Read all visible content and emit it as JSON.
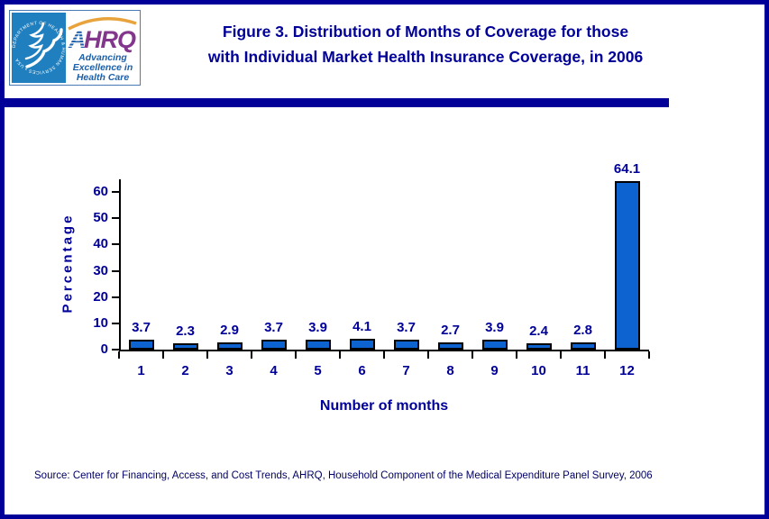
{
  "header": {
    "logo": {
      "seal_text": "DEPARTMENT OF HEALTH & HUMAN SERVICES • USA",
      "ahrq_a": "A",
      "ahrq_rest": "HRQ",
      "tagline_line1": "Advancing",
      "tagline_line2": "Excellence in",
      "tagline_line3": "Health Care"
    },
    "title_line1": "Figure 3. Distribution of Months of Coverage for those",
    "title_line2": "with Individual Market Health Insurance Coverage, in 2006"
  },
  "chart_data": {
    "type": "bar",
    "title": "Figure 3. Distribution of Months of Coverage for those with Individual Market Health Insurance Coverage, in 2006",
    "categories": [
      "1",
      "2",
      "3",
      "4",
      "5",
      "6",
      "7",
      "8",
      "9",
      "10",
      "11",
      "12"
    ],
    "values": [
      3.7,
      2.3,
      2.9,
      3.7,
      3.9,
      4.1,
      3.7,
      2.7,
      3.9,
      2.4,
      2.8,
      64.1
    ],
    "xlabel": "Number of months",
    "ylabel": "Percentage",
    "ylim": [
      0,
      65
    ],
    "yticks": [
      0,
      10,
      20,
      30,
      40,
      50,
      60
    ],
    "grid": false,
    "legend": null,
    "bar_color": "#0d64d0",
    "bar_border_color": "#000000",
    "label_color": "#000099"
  },
  "footer": {
    "source": "Source: Center for Financing, Access, and Cost Trends, AHRQ, Household Component of the Medical Expenditure Panel Survey, 2006"
  },
  "colors": {
    "navy": "#000099",
    "bar_blue": "#0d64d0",
    "hhs_blue": "#2080bf",
    "ahrq_purple": "#82368c",
    "stripe_blue": "#1f5ea8",
    "tagline_blue": "#1c5fa8",
    "arc_orange": "#e8a33d",
    "axis_black": "#000000"
  }
}
